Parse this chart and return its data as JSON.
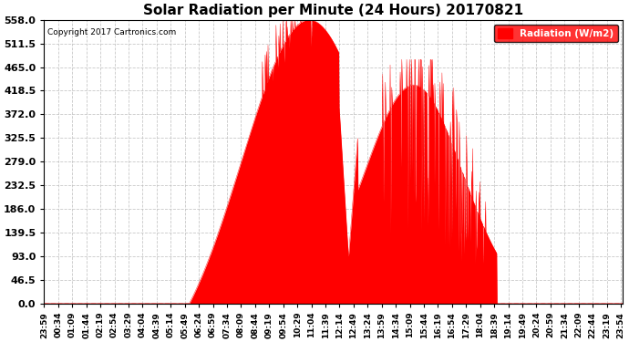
{
  "title": "Solar Radiation per Minute (24 Hours) 20170821",
  "copyright": "Copyright 2017 Cartronics.com",
  "ylabel": "Radiation (W/m2)",
  "bg_color": "#ffffff",
  "plot_bg_color": "#ffffff",
  "fill_color": "#ff0000",
  "line_color": "#ff0000",
  "grid_color": "#bbbbbb",
  "zero_line_color": "#ff0000",
  "ylim": [
    0.0,
    558.0
  ],
  "yticks": [
    0.0,
    46.5,
    93.0,
    139.5,
    186.0,
    232.5,
    279.0,
    325.5,
    372.0,
    418.5,
    465.0,
    511.5,
    558.0
  ],
  "title_fontsize": 11,
  "axis_fontsize": 8,
  "legend_color": "#ff0000",
  "tick_label_size": 6.5
}
